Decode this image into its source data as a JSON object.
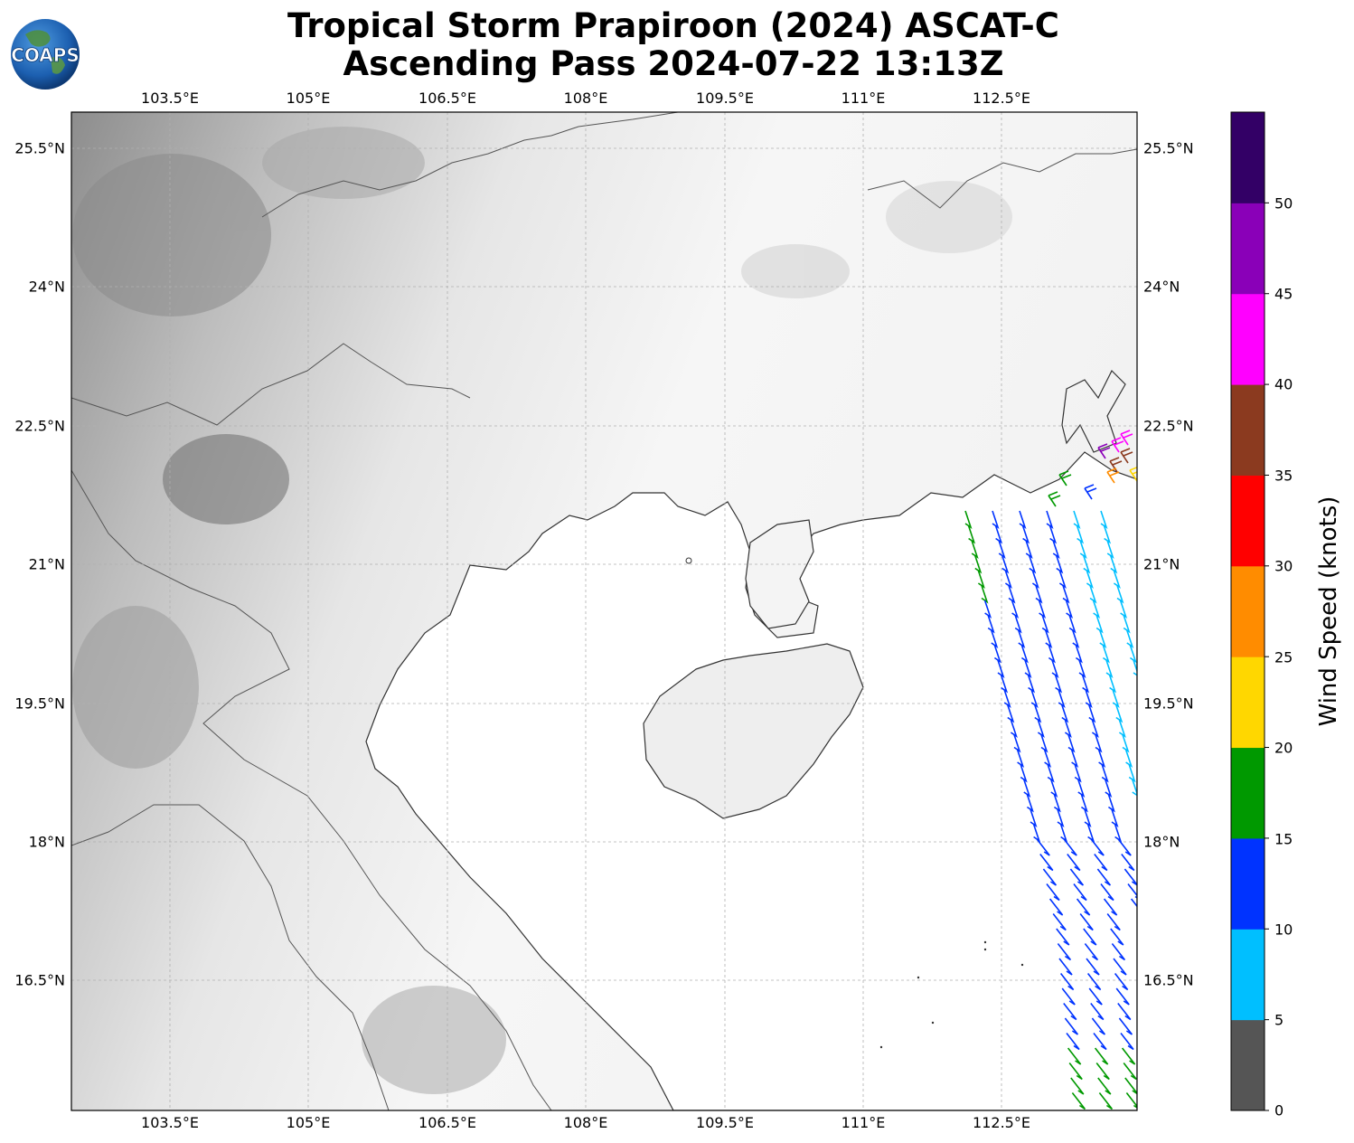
{
  "title": {
    "line1": "Tropical Storm Prapiroon (2024) ASCAT-C",
    "line2": "Ascending Pass 2024-07-22 13:13Z"
  },
  "logo_text": "COAPS",
  "axes": {
    "lon_ticks": [
      "103.5°E",
      "105°E",
      "106.5°E",
      "108°E",
      "109.5°E",
      "111°E",
      "112.5°E"
    ],
    "lat_ticks": [
      "25.5°N",
      "24°N",
      "22.5°N",
      "21°N",
      "19.5°N",
      "18°N",
      "16.5°N"
    ]
  },
  "colorbar": {
    "label": "Wind Speed (knots)",
    "ticks": [
      "0",
      "5",
      "10",
      "15",
      "20",
      "25",
      "30",
      "35",
      "40",
      "45",
      "50"
    ],
    "colors": [
      "#555555",
      "#00bfff",
      "#0033ff",
      "#009900",
      "#ffd700",
      "#ff8c00",
      "#ff0000",
      "#8b3a1f",
      "#ff00ff",
      "#8a00b8",
      "#330066"
    ]
  },
  "colors": {
    "land_dark": "#7a7a7a",
    "land_light": "#f3f3f3",
    "sea": "#ffffff",
    "coast": "#333333",
    "grid": "#b0b0b0"
  }
}
